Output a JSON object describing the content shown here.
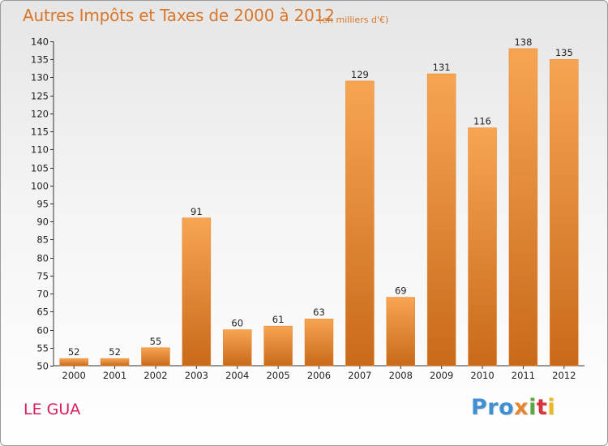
{
  "chart_data": {
    "type": "bar",
    "title": "Autres Impôts et Taxes de 2000 à 2012",
    "subtitle": "(en milliers d'€)",
    "categories": [
      "2000",
      "2001",
      "2002",
      "2003",
      "2004",
      "2005",
      "2006",
      "2007",
      "2008",
      "2009",
      "2010",
      "2011",
      "2012"
    ],
    "values": [
      52,
      52,
      55,
      91,
      60,
      61,
      63,
      129,
      69,
      131,
      116,
      138,
      135
    ],
    "ylim": [
      50,
      140
    ],
    "yticks": [
      50,
      55,
      60,
      65,
      70,
      75,
      80,
      85,
      90,
      95,
      100,
      105,
      110,
      115,
      120,
      125,
      130,
      135,
      140
    ],
    "xlabel": "",
    "ylabel": "",
    "grid": false,
    "bar_color": "#e8842b"
  },
  "footer": {
    "commune": "LE GUA",
    "logo_parts": [
      "Pro",
      "x",
      "i",
      "t",
      "i"
    ]
  }
}
